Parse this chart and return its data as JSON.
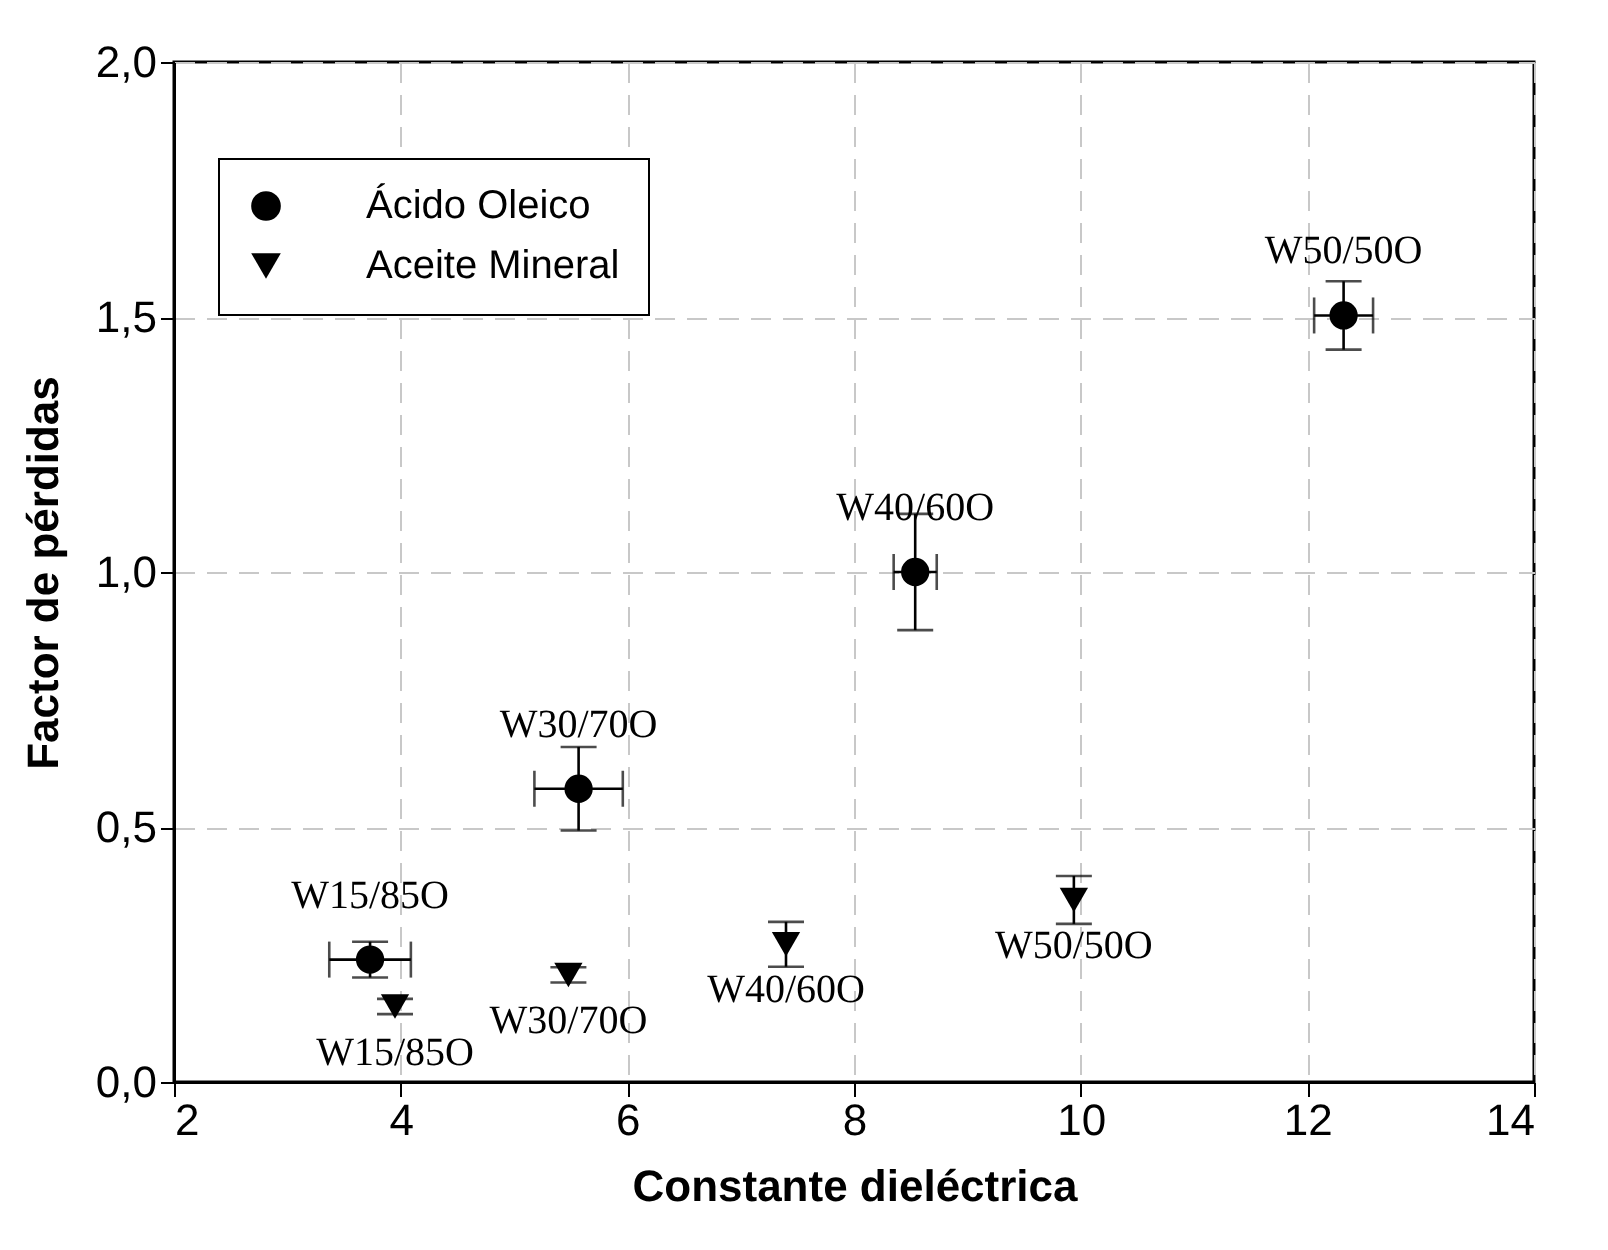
{
  "chart_data": {
    "type": "scatter",
    "xlabel": "Constante dieléctrica",
    "ylabel": "Factor de pérdidas",
    "xlim": [
      2,
      14
    ],
    "xticks": [
      2,
      4,
      6,
      8,
      10,
      12,
      14
    ],
    "ylim": [
      0,
      2
    ],
    "yticks": [
      {
        "value": 0,
        "label": "0,0"
      },
      {
        "value": 0.5,
        "label": "0,5"
      },
      {
        "value": 1,
        "label": "1,0"
      },
      {
        "value": 1.5,
        "label": "1,5"
      },
      {
        "value": 2,
        "label": "2,0"
      }
    ],
    "grid": true,
    "legend": "top left",
    "series": [
      {
        "name": "Ácido Oleico",
        "color": "#000000",
        "marker": "circle",
        "x": [
          3.73,
          5.57,
          8.54,
          12.32
        ],
        "values": [
          0.24,
          0.575,
          1.0,
          1.503
        ],
        "errors": [
          0.035,
          0.082,
          0.114,
          0.067
        ],
        "xerrors": [
          0.36,
          0.39,
          0.19,
          0.26
        ]
      },
      {
        "name": "Aceite Mineral",
        "color": "#000000",
        "marker": "triangle",
        "x": [
          3.95,
          5.48,
          7.4,
          9.94
        ],
        "values": [
          0.148,
          0.21,
          0.27,
          0.357
        ],
        "errors": [
          0.015,
          0.015,
          0.044,
          0.047
        ]
      }
    ],
    "annotations": [
      {
        "text": "W15/85O",
        "x": 3.73,
        "y": 0.24
      },
      {
        "text": "W30/70O",
        "x": 5.57,
        "y": 0.575
      },
      {
        "text": "W40/60O",
        "x": 8.54,
        "y": 1.0
      },
      {
        "text": "W50/50O",
        "x": 12.32,
        "y": 1.503
      },
      {
        "text": "W15/85O",
        "x": 3.95,
        "y": 0.148
      },
      {
        "text": "W30/70O",
        "x": 5.48,
        "y": 0.21
      },
      {
        "text": "W40/60O",
        "x": 7.4,
        "y": 0.27
      },
      {
        "text": "W50/50O",
        "x": 9.94,
        "y": 0.357
      }
    ]
  }
}
